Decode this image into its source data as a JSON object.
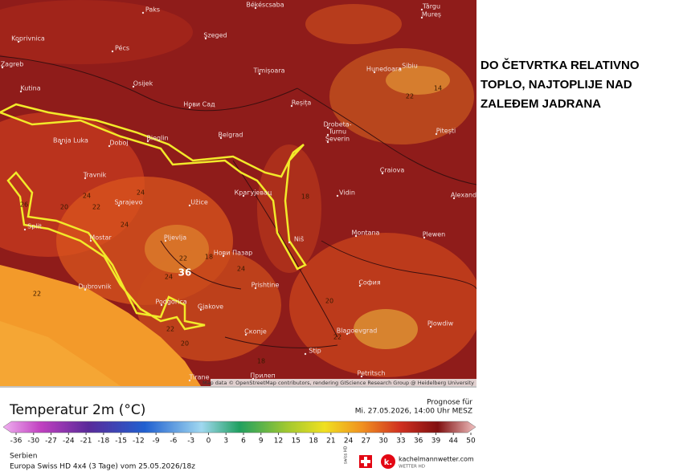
{
  "headline": [
    "DO ČETVRTKA RELATIVNO",
    "TOPLO, NAJTOPLIJE NAD",
    "ZALEĐEM JADRANA"
  ],
  "map": {
    "cities": [
      "Paks",
      "Békéscsaba",
      "Szeged",
      "Pécs",
      "Koprivnica",
      "Zagreb",
      "Osijek",
      "Timișoara",
      "Hunedoara",
      "Sibiu",
      "Kutina",
      "Нови Сад",
      "Reșița",
      "Banja Luka",
      "Doboj",
      "Bieglin",
      "Belgrad",
      "Craiova",
      "Pitești",
      "Travnik",
      "Sarajevo",
      "Užice",
      "Крагујевац",
      "Vidin",
      "Alexand",
      "Split",
      "Mostar",
      "Pljevlja",
      "Niš",
      "Montana",
      "Plewen",
      "Нови Пазар",
      "София",
      "Dubrovnik",
      "Prishtine",
      "Podgorica",
      "Gjakove",
      "Blagoevgrad",
      "Скопје",
      "Plowdiw",
      "Stip",
      "Tirane",
      "Прилеп",
      "Petritsch",
      "Drobeta-",
      "Turnu",
      "Severin",
      "Târgu",
      "Mureș"
    ],
    "values": [
      "24",
      "22",
      "22",
      "24",
      "24",
      "20",
      "18",
      "22",
      "24",
      "22",
      "20",
      "18",
      "24",
      "22",
      "36",
      "20",
      "18",
      "14",
      "22",
      "26"
    ],
    "attribution": "Map data © OpenStreetMap contributors, rendering GIScience Research Group @ Heidelberg University"
  },
  "legend": {
    "title": "Temperatur 2m (°C)",
    "forecast_label": "Prognose für",
    "forecast_time": "Mi. 27.05.2026, 14:00 Uhr MESZ",
    "ticks": [
      -36,
      -30,
      -27,
      -24,
      -21,
      -18,
      -15,
      -12,
      -9,
      -6,
      -3,
      0,
      3,
      6,
      9,
      12,
      15,
      18,
      21,
      24,
      27,
      30,
      33,
      36,
      39,
      44,
      50
    ]
  },
  "footer": {
    "region": "Serbien",
    "model": "Europa Swiss HD 4x4 (3 Tage) vom 25.05.2026/18z",
    "swiss": "swiss HD",
    "brand": "kachelmannwetter.com",
    "brand_sub": "WETTER HD"
  }
}
